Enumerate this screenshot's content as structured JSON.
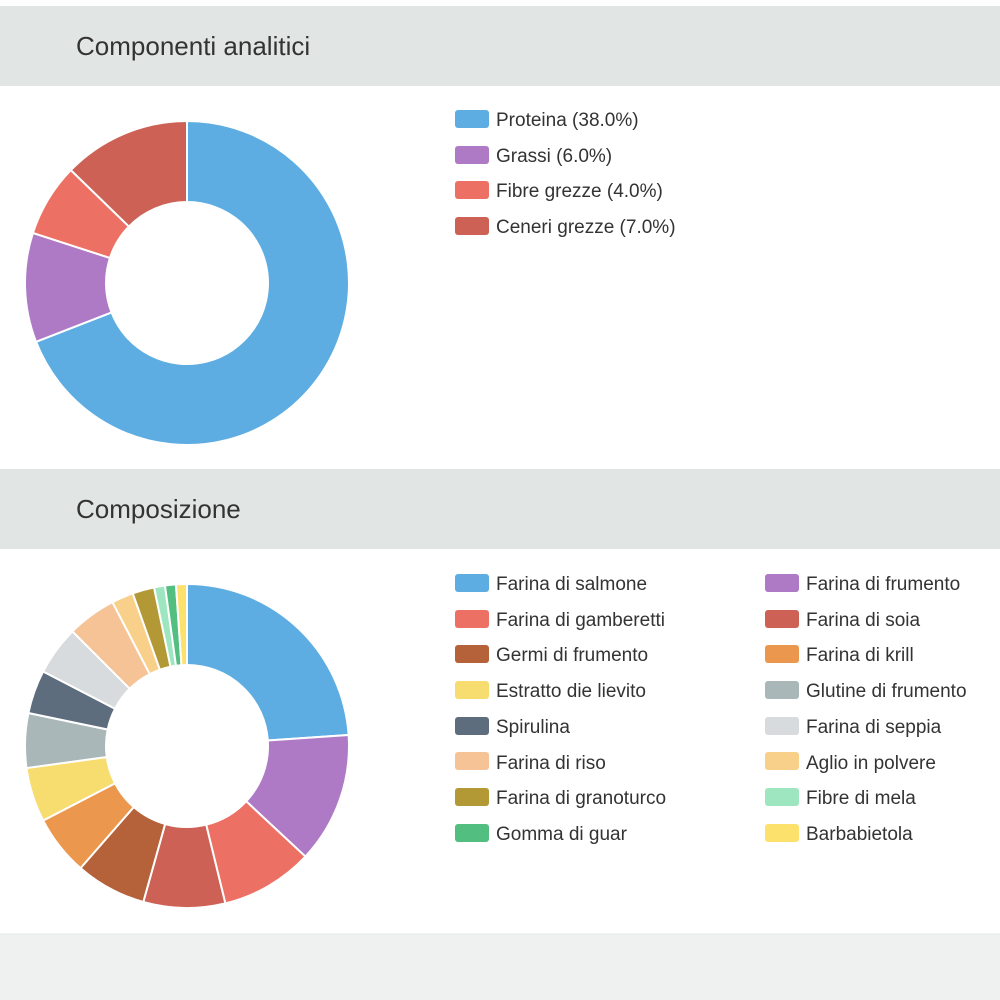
{
  "sections": [
    {
      "title": "Componenti analitici",
      "chart_data": {
        "type": "pie",
        "style": "donut",
        "legend_position": "right",
        "categories": [
          "Proteina (38.0%)",
          "Grassi (6.0%)",
          "Fibre grezze (4.0%)",
          "Ceneri grezze (7.0%)"
        ],
        "values": [
          38.0,
          6.0,
          4.0,
          7.0
        ],
        "colors": [
          "#5dade2",
          "#af7ac5",
          "#ec7063",
          "#cd6155"
        ]
      }
    },
    {
      "title": "Composizione",
      "chart_data": {
        "type": "pie",
        "style": "donut",
        "legend_position": "right",
        "categories": [
          "Farina di salmone",
          "Farina di frumento",
          "Farina di gamberetti",
          "Farina di soia",
          "Germi di frumento",
          "Farina di krill",
          "Estratto die lievito",
          "Glutine di frumento",
          "Spirulina",
          "Farina di seppia",
          "Farina di riso",
          "Aglio in polvere",
          "Farina di granoturco",
          "Fibre di mela",
          "Gomma di guar",
          "Barbabietola"
        ],
        "values": [
          22,
          12,
          8.5,
          7.5,
          6.5,
          5.5,
          5,
          5,
          4,
          4.5,
          4.5,
          2,
          2,
          1,
          1,
          1
        ],
        "colors": [
          "#5dade2",
          "#af7ac5",
          "#ec7063",
          "#cd6155",
          "#b5613a",
          "#eb984e",
          "#f7dc6f",
          "#aab7b8",
          "#5d6d7e",
          "#d7dbdd",
          "#f5c396",
          "#f8d08a",
          "#b39836",
          "#9ee6bf",
          "#52be80",
          "#fde16d"
        ]
      }
    }
  ]
}
